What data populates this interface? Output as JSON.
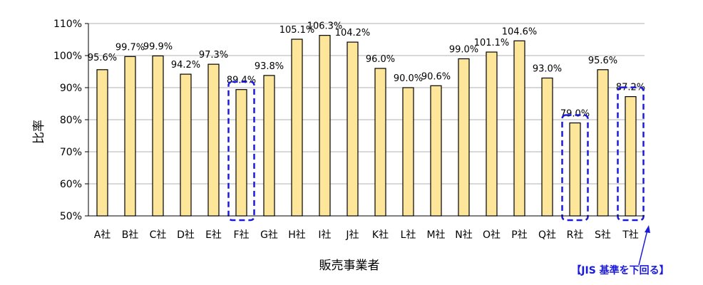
{
  "chart_data": {
    "type": "bar",
    "title": "",
    "xlabel": "販売事業者",
    "ylabel": "比率",
    "ylim": [
      50,
      110
    ],
    "yticks": [
      50,
      60,
      70,
      80,
      90,
      100,
      110
    ],
    "ytick_labels": [
      "50%",
      "60%",
      "70%",
      "80%",
      "90%",
      "100%",
      "110%"
    ],
    "categories": [
      "A社",
      "B社",
      "C社",
      "D社",
      "E社",
      "F社",
      "G社",
      "H社",
      "I社",
      "J社",
      "K社",
      "L社",
      "M社",
      "N社",
      "O社",
      "P社",
      "Q社",
      "R社",
      "S社",
      "T社"
    ],
    "values": [
      95.6,
      99.7,
      99.9,
      94.2,
      97.3,
      89.4,
      93.8,
      105.1,
      106.3,
      104.2,
      96.0,
      90.0,
      90.6,
      99.0,
      101.1,
      104.6,
      93.0,
      79.0,
      95.6,
      87.2
    ],
    "data_labels": [
      "95.6%",
      "99.7%",
      "99.9%",
      "94.2%",
      "97.3%",
      "89.4%",
      "93.8%",
      "105.1%",
      "106.3%",
      "104.2%",
      "96.0%",
      "90.0%",
      "90.6%",
      "99.0%",
      "101.1%",
      "104.6%",
      "93.0%",
      "79.0%",
      "95.6%",
      "87.2%"
    ],
    "highlighted": [
      "F社",
      "R社",
      "T社"
    ],
    "grid": true,
    "colors": {
      "bar_fill": "#fde59a",
      "bar_stroke": "#000000",
      "grid": "#b0b0b0",
      "highlight": "#1a1adc"
    },
    "annotation": "【JIS 基準を下回る】"
  }
}
